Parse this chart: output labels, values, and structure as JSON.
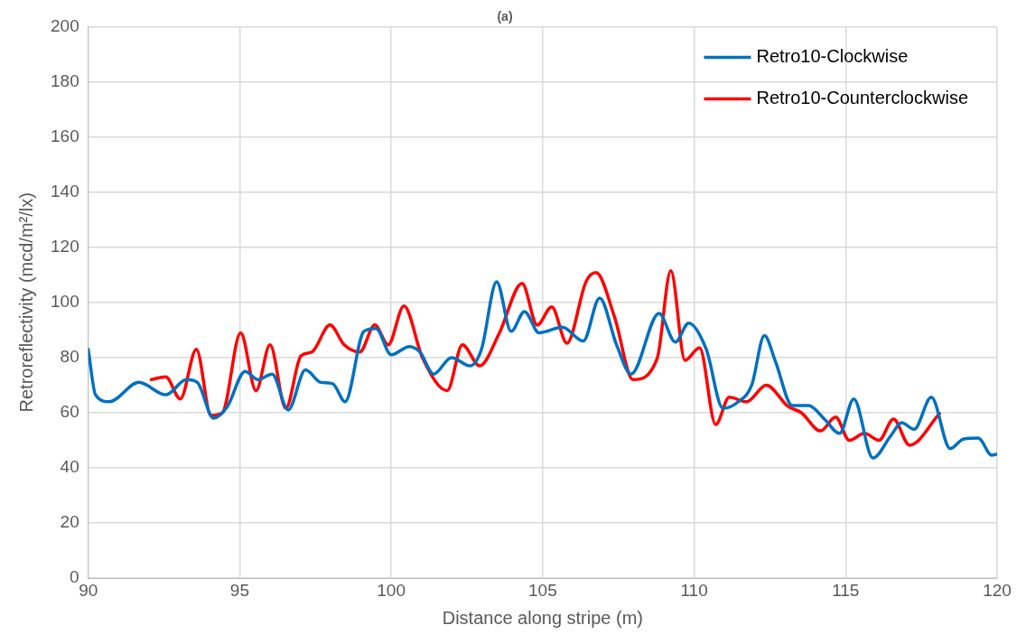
{
  "chart_data": {
    "type": "line",
    "title": "(a)",
    "xlabel": "Distance along stripe (m)",
    "ylabel": "Retroreflectivity (mcd/m²/lx)",
    "xlim": [
      90,
      120
    ],
    "xticks": [
      90,
      95,
      100,
      105,
      110,
      115,
      120
    ],
    "ylim": [
      0,
      200
    ],
    "yticks": [
      0,
      20,
      40,
      60,
      80,
      100,
      120,
      140,
      160,
      180,
      200
    ],
    "grid": true,
    "legend": "top right",
    "marker": "none",
    "line_style": "solid",
    "series": [
      {
        "name": "Retro10-Clockwise",
        "color": "#0070c0",
        "x": [
          90,
          90.24,
          90.7,
          91.67,
          92.56,
          93.24,
          93.6,
          94.14,
          94.58,
          95.18,
          95.6,
          96.07,
          96.6,
          97.17,
          97.68,
          98.07,
          98.48,
          99.1,
          99.5,
          100,
          100.6,
          100.95,
          101.4,
          101.99,
          102.6,
          102.98,
          103.48,
          103.96,
          104.4,
          104.88,
          105.65,
          106.34,
          106.88,
          107.44,
          107.92,
          108.84,
          109.38,
          109.82,
          110.4,
          110.95,
          111.46,
          111.9,
          112.32,
          112.68,
          113.24,
          113.78,
          114.3,
          114.8,
          115.27,
          115.9,
          116.5,
          116.85,
          117.26,
          117.83,
          118.45,
          118.9,
          119.38,
          119.82,
          120
        ],
        "values": [
          83,
          66.5,
          64,
          71,
          66.5,
          72,
          71,
          58,
          62,
          75,
          72,
          74,
          61,
          75.5,
          71,
          70.5,
          64,
          89.5,
          90.5,
          81,
          84,
          82,
          74,
          80,
          77,
          83,
          107.5,
          89.5,
          96.7,
          89,
          91,
          86,
          101.6,
          84.6,
          74,
          96,
          85.6,
          92.5,
          83,
          61.6,
          64,
          70,
          88,
          78.7,
          62.6,
          62.6,
          57.7,
          52.5,
          65,
          43.6,
          51.8,
          56.4,
          54,
          65.6,
          47,
          50.5,
          50.8,
          44.6,
          45
        ]
      },
      {
        "name": "Retro10-Counterclockwise",
        "color": "#ff0000",
        "x": [
          92.08,
          92.56,
          93.04,
          93.57,
          94.05,
          94.43,
          95.03,
          95.54,
          96,
          96.52,
          97.02,
          97.38,
          97.98,
          98.45,
          98.96,
          99.46,
          99.9,
          100.42,
          101.04,
          101.85,
          102.35,
          102.92,
          103.57,
          104.32,
          104.82,
          105.3,
          105.8,
          106.43,
          106.76,
          107.38,
          107.98,
          108.78,
          109.23,
          109.7,
          110.18,
          110.71,
          111.16,
          111.73,
          112.38,
          113.1,
          113.54,
          114.17,
          114.67,
          115.12,
          115.62,
          116.1,
          116.58,
          117.11,
          118.1
        ],
        "values": [
          72,
          73,
          65,
          83,
          59,
          60,
          89,
          68,
          84.6,
          61.6,
          80.6,
          82,
          91.8,
          84.6,
          82,
          91.8,
          84.6,
          98.7,
          79.7,
          68,
          84.6,
          77,
          88.9,
          106.9,
          91.8,
          98.4,
          85.2,
          107.5,
          110.8,
          94.4,
          72,
          79.7,
          111.5,
          79,
          83.6,
          55.7,
          65.6,
          64,
          70,
          62.3,
          60,
          53.4,
          58.4,
          50,
          52.5,
          50,
          57.7,
          48.2,
          59.7
        ]
      }
    ]
  }
}
